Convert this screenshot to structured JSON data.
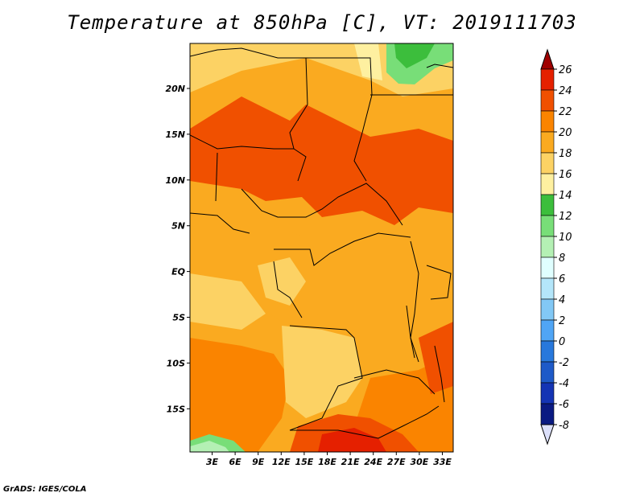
{
  "title": "Temperature at 850hPa [C], VT: 2019111703",
  "footer": "GrADS: IGES/COLA",
  "map": {
    "lat_ticks": [
      "20N",
      "15N",
      "10N",
      "5N",
      "EQ",
      "5S",
      "10S",
      "15S"
    ],
    "lon_ticks": [
      "3E",
      "6E",
      "9E",
      "12E",
      "15E",
      "18E",
      "21E",
      "24E",
      "27E",
      "30E",
      "33E"
    ]
  },
  "colorbar": {
    "labels": [
      "26",
      "24",
      "22",
      "20",
      "18",
      "16",
      "14",
      "12",
      "10",
      "8",
      "6",
      "4",
      "2",
      "0",
      "-2",
      "-4",
      "-6",
      "-8"
    ],
    "colors": [
      "#a00000",
      "#e52000",
      "#f05000",
      "#fa8400",
      "#faaa20",
      "#fcd264",
      "#fef0a0",
      "#3cbe3c",
      "#78de78",
      "#b4f0b4",
      "#e0ffff",
      "#b4e6fa",
      "#82c8f5",
      "#50a5f5",
      "#2878dc",
      "#1e5ac8",
      "#1434b4",
      "#0a1a82",
      "#000064"
    ],
    "top_color": "#a00000",
    "bottom_color": "#dce0fa"
  }
}
